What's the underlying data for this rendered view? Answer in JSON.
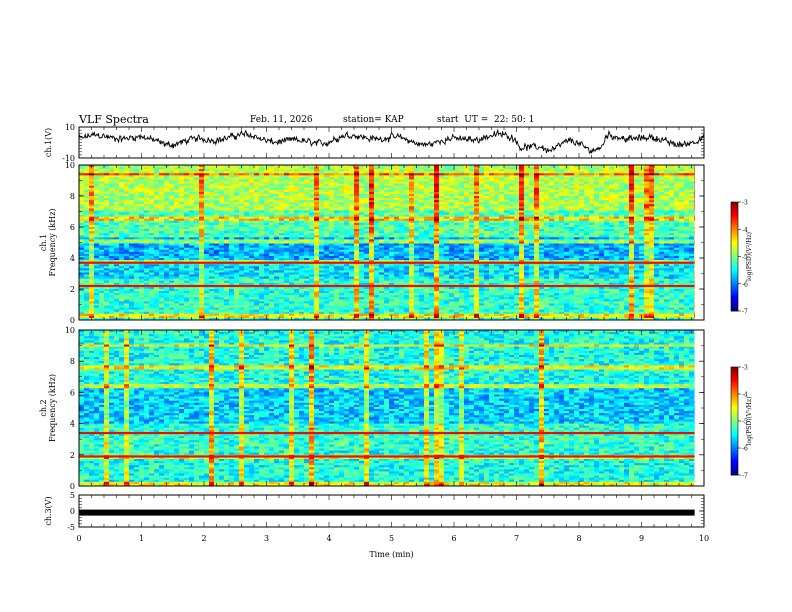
{
  "header": {
    "title": "VLF Spectra",
    "date": "Feb. 11, 2026",
    "station": "station= KAP",
    "start": "start  UT =  22: 50: 1"
  },
  "chart_data": [
    {
      "type": "line",
      "id": "ch1-waveform",
      "ylabel": "ch.1(V)",
      "ylim": [
        -10,
        10
      ],
      "yticks": [
        10,
        -10
      ],
      "xlim": [
        0,
        10
      ],
      "description_series": "noisy waveform near +/-4 V"
    },
    {
      "type": "heatmap",
      "id": "ch1-spectrogram",
      "ylabel_top": "ch.1",
      "ylabel": "Frequency (kHz)",
      "ylim": [
        0,
        10
      ],
      "yticks": [
        0,
        2,
        4,
        6,
        8,
        10
      ],
      "xlim": [
        0,
        10
      ],
      "colorbar": {
        "label": "log(PSD)(V²/Hz)",
        "range": [
          -7,
          -3
        ],
        "ticks": [
          -3,
          -4,
          -5,
          -6,
          -7
        ]
      }
    },
    {
      "type": "heatmap",
      "id": "ch2-spectrogram",
      "ylabel_top": "ch.2",
      "ylabel": "Frequency (kHz)",
      "ylim": [
        0,
        10
      ],
      "yticks": [
        0,
        2,
        4,
        6,
        8,
        10
      ],
      "xlim": [
        0,
        10
      ],
      "colorbar": {
        "label": "log(PSD)(V²/Hz)",
        "range": [
          -7,
          -3
        ],
        "ticks": [
          -3,
          -4,
          -5,
          -6,
          -7
        ]
      }
    },
    {
      "type": "line",
      "id": "ch3-waveform",
      "ylabel": "ch.3(V)",
      "ylim": [
        -5,
        5
      ],
      "yticks": [
        5,
        0,
        -5
      ],
      "xlim": [
        0,
        10
      ],
      "value": -0.5
    }
  ],
  "xaxis": {
    "label": "Time (min)",
    "ticks": [
      "0",
      "1",
      "2",
      "3",
      "4",
      "5",
      "6",
      "7",
      "8",
      "9",
      "10"
    ]
  }
}
